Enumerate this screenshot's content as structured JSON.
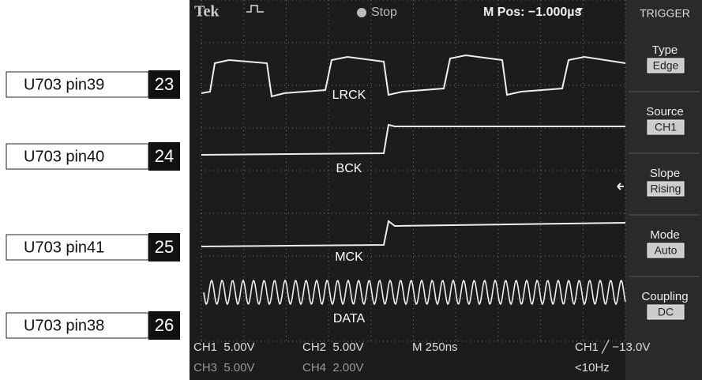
{
  "labels": [
    {
      "name": "U703 pin39",
      "number": "23"
    },
    {
      "name": "U703 pin40",
      "number": "24"
    },
    {
      "name": "U703 pin41",
      "number": "25"
    },
    {
      "name": "U703 pin38",
      "number": "26"
    }
  ],
  "scope": {
    "header": {
      "brand": "Tek",
      "status": "Stop",
      "position": "M Pos: −1.000µs"
    },
    "menu": {
      "title": "TRIGGER",
      "items": [
        {
          "label": "Type",
          "value": "Edge"
        },
        {
          "label": "Source",
          "value": "CH1"
        },
        {
          "label": "Slope",
          "value": "Rising"
        },
        {
          "label": "Mode",
          "value": "Auto"
        },
        {
          "label": "Coupling",
          "value": "DC"
        }
      ]
    },
    "signals": [
      "LRCK",
      "BCK",
      "MCK",
      "DATA"
    ],
    "status": [
      "CH1  5.00V",
      "CH2  5.00V",
      "M 250ns",
      "CH1 ╱ −13.0V",
      "CH3  5.00V",
      "CH4  2.00V",
      "<10Hz"
    ]
  }
}
